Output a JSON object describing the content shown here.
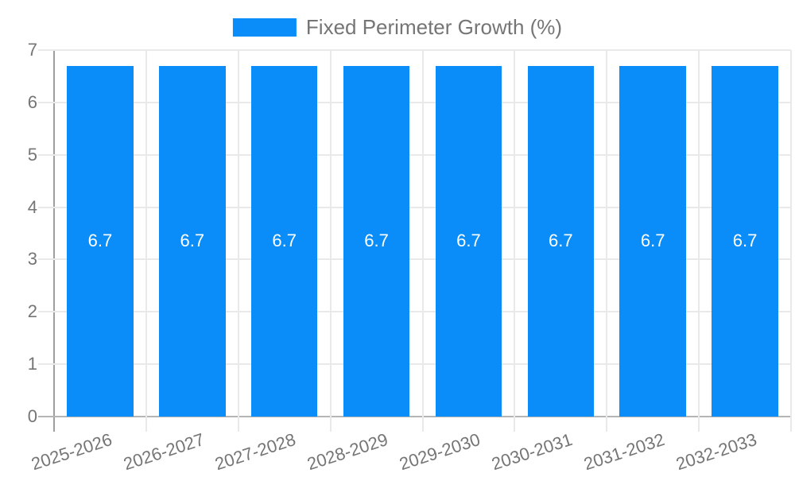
{
  "chart_data": {
    "type": "bar",
    "title": "",
    "legend": {
      "label": "Fixed Perimeter Growth (%)",
      "position": "top-center"
    },
    "categories": [
      "2025-2026",
      "2026-2027",
      "2027-2028",
      "2028-2029",
      "2029-2030",
      "2030-2031",
      "2031-2032",
      "2032-2033"
    ],
    "series": [
      {
        "name": "Fixed Perimeter Growth (%)",
        "color": "#0a8df8",
        "values": [
          6.7,
          6.7,
          6.7,
          6.7,
          6.7,
          6.7,
          6.7,
          6.7
        ]
      }
    ],
    "value_labels": [
      "6.7",
      "6.7",
      "6.7",
      "6.7",
      "6.7",
      "6.7",
      "6.7",
      "6.7"
    ],
    "xlabel": "",
    "ylabel": "",
    "ylim": [
      0,
      7
    ],
    "yticks": [
      0,
      1,
      2,
      3,
      4,
      5,
      6,
      7
    ],
    "grid": true,
    "colors": {
      "bar": "#0a8df8",
      "axis_text": "#757575",
      "bar_label": "#ffffff",
      "gridline": "#e9e9e9",
      "baseline": "#b5b5b5",
      "axis_line": "#9e9e9e",
      "background": "#ffffff"
    }
  }
}
